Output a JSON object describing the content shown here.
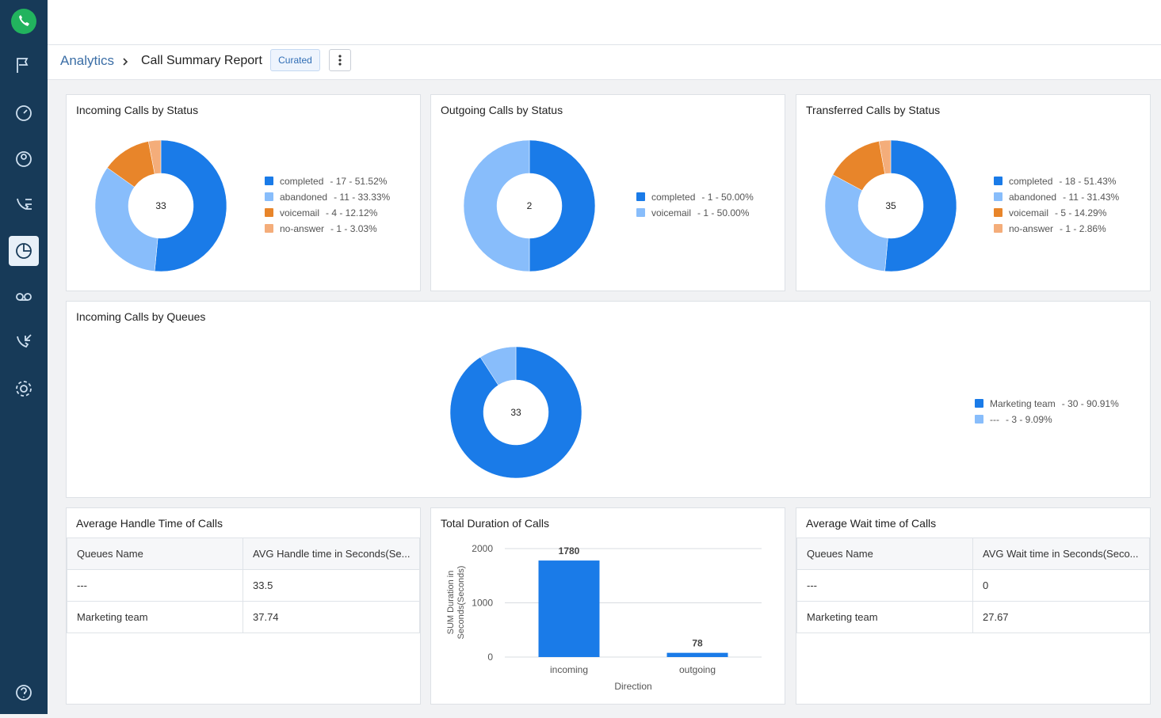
{
  "nav": {
    "root": "Analytics",
    "report": "Call Summary Report",
    "badge": "Curated"
  },
  "chart_data": [
    {
      "type": "donut",
      "title": "Incoming Calls by Status",
      "total": 33,
      "categories": [
        "completed",
        "abandoned",
        "voicemail",
        "no-answer"
      ],
      "values": [
        17,
        11,
        4,
        1
      ],
      "value_labels": [
        "- 17 - 51.52%",
        "- 11 - 33.33%",
        "- 4 - 12.12%",
        "- 1 - 3.03%"
      ],
      "colors": [
        "#1a7be8",
        "#88bdfb",
        "#e8852a",
        "#f4ad7a"
      ]
    },
    {
      "type": "donut",
      "title": "Outgoing Calls by Status",
      "total": 2,
      "categories": [
        "completed",
        "voicemail"
      ],
      "values": [
        1,
        1
      ],
      "value_labels": [
        "- 1 - 50.00%",
        "- 1 - 50.00%"
      ],
      "colors": [
        "#1a7be8",
        "#88bdfb"
      ]
    },
    {
      "type": "donut",
      "title": "Transferred Calls by Status",
      "total": 35,
      "categories": [
        "completed",
        "abandoned",
        "voicemail",
        "no-answer"
      ],
      "values": [
        18,
        11,
        5,
        1
      ],
      "value_labels": [
        "- 18 - 51.43%",
        "- 11 - 31.43%",
        "- 5 - 14.29%",
        "- 1 - 2.86%"
      ],
      "colors": [
        "#1a7be8",
        "#88bdfb",
        "#e8852a",
        "#f4ad7a"
      ]
    },
    {
      "type": "donut",
      "title": "Incoming Calls by Queues",
      "total": 33,
      "categories": [
        "Marketing team",
        "---"
      ],
      "values": [
        30,
        3
      ],
      "value_labels": [
        "- 30 - 90.91%",
        "- 3 - 9.09%"
      ],
      "colors": [
        "#1a7be8",
        "#88bdfb"
      ]
    },
    {
      "type": "bar",
      "title": "Total Duration of Calls",
      "xlabel": "Direction",
      "ylabel": "SUM Duration in Seconds(Seconds)",
      "categories": [
        "incoming",
        "outgoing"
      ],
      "values": [
        1780,
        78
      ],
      "color": "#1a7be8",
      "ylim": [
        0,
        2000
      ],
      "yticks": [
        0,
        1000,
        2000
      ],
      "grid": true
    }
  ],
  "tables": [
    {
      "title": "Average Handle Time of Calls",
      "columns": [
        "Queues Name",
        "AVG Handle time in Seconds(Se..."
      ],
      "rows": [
        [
          "---",
          33.5
        ],
        [
          "Marketing team",
          37.74
        ]
      ]
    },
    {
      "title": "Average Wait time of Calls",
      "columns": [
        "Queues Name",
        "AVG Wait time in Seconds(Seco..."
      ],
      "rows": [
        [
          "---",
          0
        ],
        [
          "Marketing team",
          27.67
        ]
      ]
    }
  ]
}
